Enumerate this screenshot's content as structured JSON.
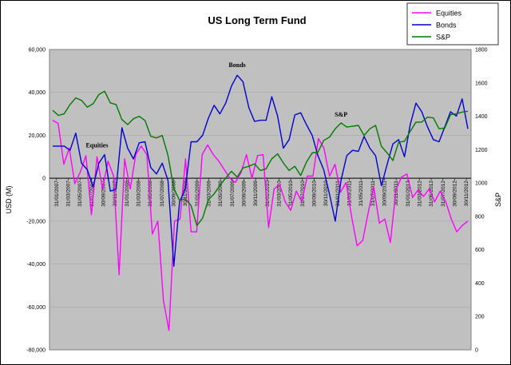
{
  "chart_data": {
    "type": "line",
    "title": "US Long Term Fund",
    "ylabel": "USD (M)",
    "y2label": "S&P",
    "ylim": [
      -80000,
      60000
    ],
    "y2lim": [
      0,
      1800
    ],
    "yticks": [
      "60,000",
      "40,000",
      "20,000",
      "0",
      "-20,000",
      "-40,000",
      "-60,000",
      "-80,000"
    ],
    "y2ticks": [
      "1800",
      "1600",
      "1400",
      "1200",
      "1000",
      "800",
      "600",
      "400",
      "200",
      "0"
    ],
    "xtick_labels": [
      "31/01/2007",
      "31/03/2007",
      "31/05/2007",
      "31/07/2007",
      "30/09/2007",
      "30/11/2007",
      "31/01/2008",
      "31/03/2008",
      "31/05/2008",
      "31/07/2008",
      "30/09/2008",
      "30/11/2008",
      "31/01/2009",
      "31/03/2009",
      "31/05/2009",
      "31/07/2009",
      "30/09/2009",
      "30/11/2009",
      "31/01/2010",
      "31/03/2010",
      "31/05/2010",
      "31/07/2010",
      "30/09/2010",
      "30/11/2010",
      "31/01/2011",
      "31/03/2011",
      "31/05/2011",
      "31/07/2011",
      "30/09/2011",
      "30/11/2011",
      "31/01/2012",
      "31/03/2012",
      "31/05/2012",
      "31/07/2012",
      "30/09/2012",
      "30/11/2012"
    ],
    "legend_position": "top-right",
    "series": [
      {
        "name": "Equities",
        "axis": "left",
        "color": "#ff00ff",
        "values": [
          27000,
          25500,
          6500,
          14000,
          -2500,
          3000,
          10500,
          -17000,
          10000,
          -5000,
          8000,
          1000,
          -45000,
          9000,
          -5000,
          11000,
          15000,
          11000,
          -26000,
          -20000,
          -57000,
          -71000,
          -20000,
          -19000,
          9000,
          -25000,
          -25000,
          11000,
          15500,
          11000,
          8000,
          4000,
          0,
          -2000,
          2500,
          11000,
          0,
          10500,
          11000,
          -23000,
          -5000,
          -3000,
          -11000,
          -15000,
          -6000,
          -11000,
          1000,
          1000,
          18500,
          14000,
          1000,
          6500,
          -6500,
          -2000,
          -18000,
          -31500,
          -29000,
          -16000,
          -4000,
          -21000,
          -19000,
          -30000,
          -5500,
          500,
          2000,
          -9000,
          -5500,
          -8500,
          -5000,
          -11000,
          -6000,
          -11000,
          -19000,
          -25000,
          -22000,
          -20000
        ]
      },
      {
        "name": "Bonds",
        "axis": "left",
        "color": "#0000cc",
        "values": [
          15000,
          15000,
          15000,
          13000,
          21000,
          7000,
          4000,
          -4000,
          7000,
          11000,
          -6000,
          -5000,
          23500,
          14000,
          9000,
          16500,
          17000,
          5000,
          2000,
          7000,
          -1000,
          -41000,
          -11000,
          -5000,
          17000,
          17000,
          20000,
          28000,
          34000,
          30000,
          35000,
          43000,
          48000,
          45000,
          33000,
          26500,
          27000,
          27000,
          38000,
          29000,
          14000,
          18000,
          29500,
          30500,
          25000,
          20000,
          10500,
          4000,
          -7500,
          -20000,
          -1000,
          10500,
          13000,
          12500,
          19500,
          14000,
          10500,
          -3500,
          6500,
          16000,
          18000,
          10000,
          25000,
          35000,
          31000,
          24000,
          18000,
          17000,
          24000,
          31000,
          29000,
          37000,
          23000
        ]
      },
      {
        "name": "S&P",
        "axis": "right",
        "color": "#007a00",
        "values": [
          1435,
          1405,
          1415,
          1470,
          1510,
          1495,
          1455,
          1475,
          1530,
          1550,
          1480,
          1470,
          1380,
          1350,
          1385,
          1400,
          1375,
          1280,
          1270,
          1285,
          1165,
          969,
          895,
          905,
          865,
          745,
          790,
          900,
          935,
          985,
          1030,
          1070,
          1035,
          1090,
          1100,
          1115,
          1075,
          1085,
          1145,
          1175,
          1120,
          1075,
          1100,
          1045,
          1125,
          1180,
          1185,
          1255,
          1275,
          1325,
          1360,
          1335,
          1340,
          1345,
          1285,
          1325,
          1345,
          1220,
          1180,
          1135,
          1245,
          1250,
          1310,
          1365,
          1365,
          1395,
          1390,
          1325,
          1330,
          1410,
          1415,
          1425,
          1430
        ]
      }
    ],
    "annotations": [
      {
        "text": "Equities",
        "series": "Equities"
      },
      {
        "text": "Bonds",
        "series": "Bonds"
      },
      {
        "text": "S&P",
        "series": "S&P"
      }
    ]
  }
}
